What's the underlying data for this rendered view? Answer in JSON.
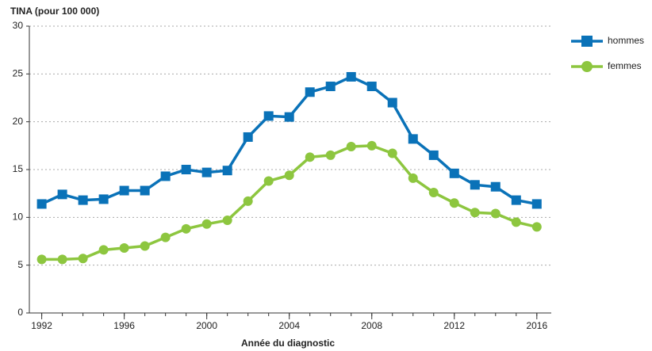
{
  "chart_data": {
    "type": "line",
    "title": "TINA (pour 100 000)",
    "x_label": "Année du diagnostic",
    "x": [
      1992,
      1993,
      1994,
      1995,
      1996,
      1997,
      1998,
      1999,
      2000,
      2001,
      2002,
      2003,
      2004,
      2005,
      2006,
      2007,
      2008,
      2009,
      2010,
      2011,
      2012,
      2013,
      2014,
      2015,
      2016
    ],
    "series": [
      {
        "name": "hommes",
        "color": "#0a72b8",
        "marker": "square",
        "values": [
          11.4,
          12.4,
          11.8,
          11.9,
          12.8,
          12.8,
          14.3,
          15.0,
          14.7,
          14.9,
          18.4,
          20.6,
          20.5,
          23.1,
          23.7,
          24.7,
          23.7,
          22.0,
          18.2,
          16.5,
          14.6,
          13.4,
          13.2,
          11.8,
          11.4
        ]
      },
      {
        "name": "femmes",
        "color": "#8dc63f",
        "marker": "circle",
        "values": [
          5.6,
          5.6,
          5.7,
          6.6,
          6.8,
          7.0,
          7.9,
          8.8,
          9.3,
          9.7,
          11.7,
          13.8,
          14.4,
          16.3,
          16.5,
          17.4,
          17.5,
          16.7,
          14.1,
          12.6,
          11.5,
          10.5,
          10.4,
          9.5,
          9.0
        ]
      }
    ],
    "xlim": [
      1991.4,
      2016.7
    ],
    "xticks": [
      1992,
      1996,
      2000,
      2004,
      2008,
      2012,
      2016
    ],
    "ylim": [
      0,
      30
    ],
    "yticks": [
      0,
      5,
      10,
      15,
      20,
      25,
      30
    ],
    "grid": true,
    "legend": "top-right"
  }
}
